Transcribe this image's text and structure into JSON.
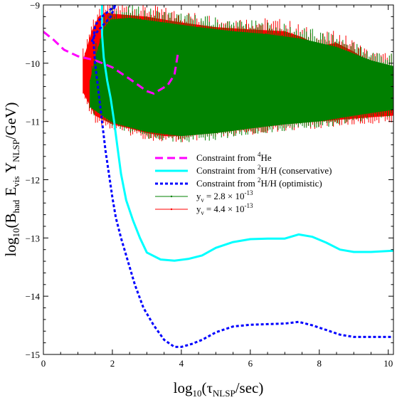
{
  "chart_data": {
    "type": "line",
    "xlabel": {
      "main": "log",
      "sub1": "10",
      "mid": "(τ",
      "sub2": "NLSP",
      "end": "/sec)"
    },
    "ylabel": {
      "main": "log",
      "sub1": "10",
      "p2": "(B",
      "sub2": "had",
      "p3": " E",
      "sub3": "vis",
      "p4": " Y",
      "sub4": "NLSP",
      "p5": "/GeV)"
    },
    "xlim": [
      0,
      10.15
    ],
    "ylim": [
      -15,
      -9
    ],
    "xticks": [
      0,
      2,
      4,
      6,
      8,
      10
    ],
    "xtick_labels": [
      "0",
      "2",
      "4",
      "6",
      "8",
      "10"
    ],
    "yticks": [
      -15,
      -14,
      -13,
      -12,
      -11,
      -10,
      -9
    ],
    "ytick_labels": [
      "−15",
      "−14",
      "−13",
      "−12",
      "−11",
      "−10",
      "−9"
    ],
    "grid": false,
    "legend_position": "center-right",
    "series": [
      {
        "name": "Constraint from ⁴He",
        "legend": {
          "pre": "Constraint from ",
          "sup": "4",
          "post": "He"
        },
        "style": "dashed",
        "color": "#ff00ff",
        "points": [
          [
            0.0,
            -9.46
          ],
          [
            0.3,
            -9.6
          ],
          [
            0.6,
            -9.77
          ],
          [
            1.0,
            -9.88
          ],
          [
            1.5,
            -9.95
          ],
          [
            2.0,
            -10.07
          ],
          [
            2.5,
            -10.27
          ],
          [
            3.0,
            -10.48
          ],
          [
            3.2,
            -10.52
          ],
          [
            3.6,
            -10.38
          ],
          [
            3.8,
            -10.2
          ],
          [
            3.9,
            -9.84
          ]
        ]
      },
      {
        "name": "Constraint from ²H/H (conservative)",
        "legend": {
          "pre": "Constraint from ",
          "sup": "2",
          "post": "H/H (conservative)"
        },
        "style": "solid",
        "color": "#00ffff",
        "points": [
          [
            1.7,
            -9.0
          ],
          [
            1.7,
            -9.5
          ],
          [
            1.75,
            -9.9
          ],
          [
            1.85,
            -10.3
          ],
          [
            1.95,
            -10.6
          ],
          [
            2.05,
            -11.0
          ],
          [
            2.15,
            -11.45
          ],
          [
            2.25,
            -11.9
          ],
          [
            2.4,
            -12.35
          ],
          [
            2.6,
            -12.7
          ],
          [
            2.8,
            -13.0
          ],
          [
            3.0,
            -13.25
          ],
          [
            3.4,
            -13.37
          ],
          [
            3.8,
            -13.39
          ],
          [
            4.2,
            -13.36
          ],
          [
            4.6,
            -13.3
          ],
          [
            5.0,
            -13.17
          ],
          [
            5.5,
            -13.07
          ],
          [
            6.0,
            -13.02
          ],
          [
            6.5,
            -13.01
          ],
          [
            7.0,
            -13.01
          ],
          [
            7.4,
            -12.94
          ],
          [
            7.8,
            -12.98
          ],
          [
            8.2,
            -13.08
          ],
          [
            8.6,
            -13.2
          ],
          [
            9.0,
            -13.24
          ],
          [
            9.5,
            -13.24
          ],
          [
            10.15,
            -13.22
          ]
        ]
      },
      {
        "name": "Constraint from ²H/H (optimistic)",
        "legend": {
          "pre": "Constraint from ",
          "sup": "2",
          "post": "H/H (optimistic)"
        },
        "style": "dotted",
        "color": "#0000ff",
        "points": [
          [
            1.4,
            -9.63
          ],
          [
            1.5,
            -9.5
          ],
          [
            1.65,
            -9.4
          ],
          [
            1.8,
            -9.3
          ],
          [
            1.95,
            -9.2
          ],
          [
            2.05,
            -9.05
          ],
          [
            2.1,
            -9.0
          ],
          [
            1.9,
            -9.1
          ],
          [
            1.7,
            -9.2
          ],
          [
            1.5,
            -9.35
          ],
          [
            1.45,
            -9.6
          ],
          [
            1.5,
            -10.0
          ],
          [
            1.6,
            -10.5
          ],
          [
            1.7,
            -11.0
          ],
          [
            1.8,
            -11.5
          ],
          [
            1.9,
            -11.9
          ],
          [
            2.0,
            -12.3
          ],
          [
            2.1,
            -12.65
          ],
          [
            2.25,
            -13.0
          ],
          [
            2.45,
            -13.4
          ],
          [
            2.65,
            -13.8
          ],
          [
            2.9,
            -14.2
          ],
          [
            3.2,
            -14.5
          ],
          [
            3.5,
            -14.75
          ],
          [
            3.8,
            -14.87
          ],
          [
            4.0,
            -14.87
          ],
          [
            4.3,
            -14.82
          ],
          [
            4.6,
            -14.75
          ],
          [
            5.0,
            -14.62
          ],
          [
            5.5,
            -14.52
          ],
          [
            6.0,
            -14.49
          ],
          [
            6.5,
            -14.48
          ],
          [
            7.0,
            -14.47
          ],
          [
            7.4,
            -14.44
          ],
          [
            7.8,
            -14.5
          ],
          [
            8.2,
            -14.58
          ],
          [
            8.6,
            -14.66
          ],
          [
            9.0,
            -14.7
          ],
          [
            9.5,
            -14.7
          ],
          [
            10.15,
            -14.7
          ]
        ]
      }
    ],
    "scatter_series": [
      {
        "name": "y_ν = 4.4 × 10⁻¹³",
        "legend": {
          "pre": "y",
          "sub": "ν",
          "mid": " = 4.4 × 10",
          "sup": "-13"
        },
        "color": "#ff0000",
        "region_top": [
          [
            1.15,
            -9.95
          ],
          [
            1.4,
            -9.45
          ],
          [
            1.6,
            -9.2
          ],
          [
            1.8,
            -9.12
          ],
          [
            2.0,
            -9.15
          ],
          [
            3.0,
            -9.2
          ],
          [
            4.0,
            -9.3
          ],
          [
            5.0,
            -9.38
          ],
          [
            6.0,
            -9.42
          ],
          [
            7.0,
            -9.45
          ],
          [
            7.5,
            -9.55
          ],
          [
            8.0,
            -9.7
          ],
          [
            8.5,
            -9.65
          ],
          [
            9.0,
            -9.8
          ],
          [
            9.5,
            -10.0
          ],
          [
            10.15,
            -10.05
          ]
        ],
        "region_bottom": [
          [
            1.15,
            -10.5
          ],
          [
            1.5,
            -10.9
          ],
          [
            2.0,
            -11.05
          ],
          [
            2.5,
            -11.12
          ],
          [
            3.0,
            -11.2
          ],
          [
            3.5,
            -11.25
          ],
          [
            4.0,
            -11.25
          ],
          [
            5.0,
            -11.2
          ],
          [
            6.0,
            -11.12
          ],
          [
            7.0,
            -11.05
          ],
          [
            8.0,
            -11.0
          ],
          [
            9.0,
            -10.95
          ],
          [
            10.15,
            -10.9
          ]
        ]
      },
      {
        "name": "y_ν = 2.8 × 10⁻¹³",
        "legend": {
          "pre": "y",
          "sub": "ν",
          "mid": " = 2.8 × 10",
          "sup": "-13"
        },
        "color": "#008000",
        "region_top": [
          [
            1.35,
            -10.3
          ],
          [
            1.55,
            -9.8
          ],
          [
            1.75,
            -9.4
          ],
          [
            1.95,
            -9.25
          ],
          [
            2.5,
            -9.22
          ],
          [
            3.5,
            -9.3
          ],
          [
            4.5,
            -9.38
          ],
          [
            5.5,
            -9.45
          ],
          [
            6.5,
            -9.5
          ],
          [
            7.5,
            -9.58
          ],
          [
            8.5,
            -9.72
          ],
          [
            9.5,
            -9.95
          ],
          [
            10.15,
            -10.05
          ]
        ],
        "region_bottom": [
          [
            1.35,
            -10.75
          ],
          [
            2.0,
            -11.02
          ],
          [
            3.0,
            -11.18
          ],
          [
            4.0,
            -11.25
          ],
          [
            5.0,
            -11.2
          ],
          [
            6.0,
            -11.12
          ],
          [
            7.0,
            -11.05
          ],
          [
            8.0,
            -11.0
          ],
          [
            9.0,
            -10.9
          ],
          [
            10.15,
            -10.8
          ]
        ]
      }
    ]
  }
}
